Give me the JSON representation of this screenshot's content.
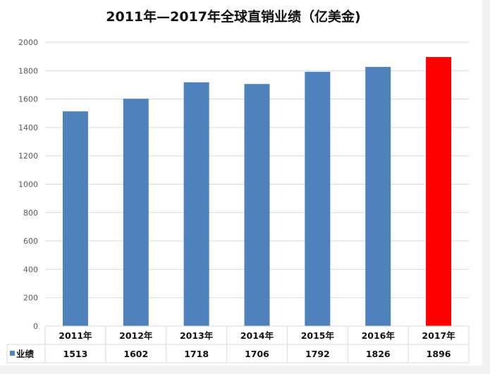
{
  "chart_data": {
    "type": "bar",
    "title": "2011年—2017年全球直销业绩（亿美金)",
    "categories": [
      "2011年",
      "2012年",
      "2013年",
      "2014年",
      "2015年",
      "2016年",
      "2017年"
    ],
    "series": [
      {
        "name": "业绩",
        "values": [
          1513,
          1602,
          1718,
          1706,
          1792,
          1826,
          1896
        ]
      }
    ],
    "ylim": [
      0,
      2000
    ],
    "yticks": [
      0,
      200,
      400,
      600,
      800,
      1000,
      1200,
      1400,
      1600,
      1800,
      2000
    ],
    "grid": true,
    "data_table": true,
    "colors": {
      "bar": "#4f81bd",
      "highlight": "#ff0000",
      "highlight_index": 6
    }
  }
}
